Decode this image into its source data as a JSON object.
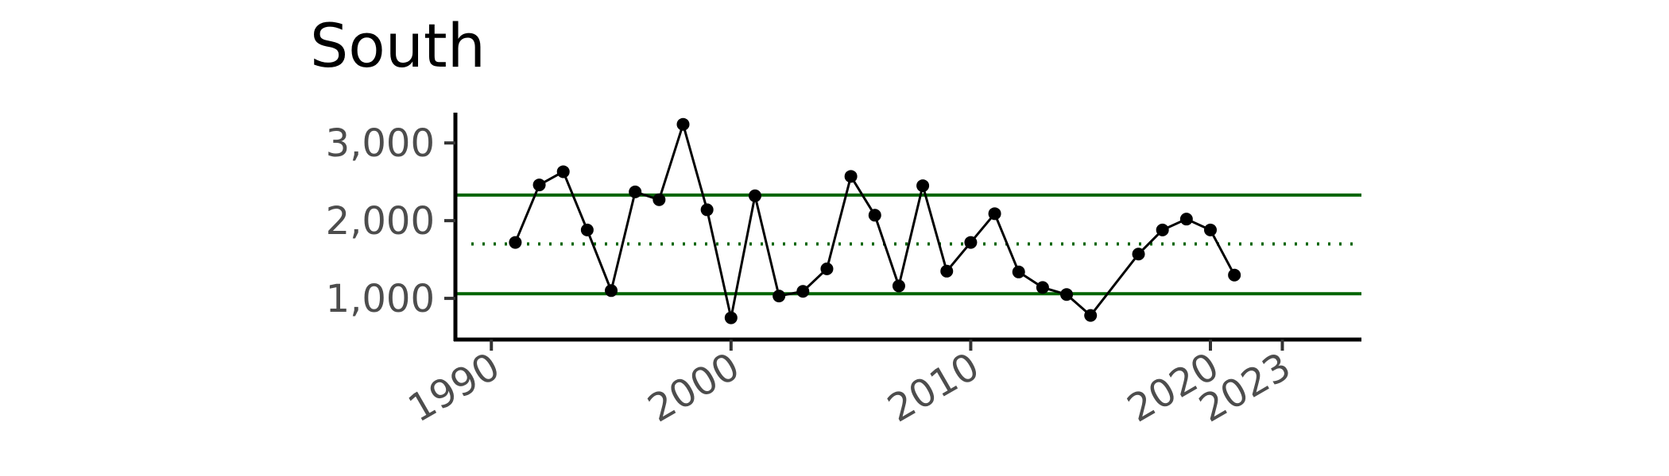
{
  "chart_data": {
    "type": "line",
    "title": "South",
    "xlabel": "",
    "ylabel": "",
    "xlim": [
      1988.5,
      2026.3
    ],
    "ylim": [
      470,
      3390
    ],
    "x_ticks": [
      1990,
      2000,
      2010,
      2020,
      2023
    ],
    "x_tick_labels": [
      "1990",
      "2000",
      "2010",
      "2020",
      "2023"
    ],
    "y_ticks": [
      1000,
      2000,
      3000
    ],
    "y_tick_labels": [
      "1,000",
      "2,000",
      "3,000"
    ],
    "reference_lines": {
      "upper": 2330,
      "mean": 1700,
      "lower": 1060,
      "color": "#006400"
    },
    "series": [
      {
        "color": "#000000",
        "x": [
          1991,
          1992,
          1993,
          1994,
          1995,
          1996,
          1997,
          1998,
          1999,
          2000,
          2001,
          2002,
          2003,
          2004,
          2005,
          2006,
          2007,
          2008,
          2009,
          2010,
          2011,
          2012,
          2013,
          2014,
          2015,
          2017,
          2018,
          2019,
          2020,
          2021
        ],
        "y": [
          1720,
          2460,
          2630,
          1880,
          1100,
          2370,
          2270,
          3240,
          2140,
          750,
          2320,
          1030,
          1090,
          1380,
          2570,
          2070,
          1160,
          2450,
          1350,
          1720,
          2090,
          1340,
          1140,
          1050,
          780,
          1570,
          1880,
          2020,
          1880,
          1300
        ]
      }
    ],
    "grid": false,
    "legend": "none"
  }
}
